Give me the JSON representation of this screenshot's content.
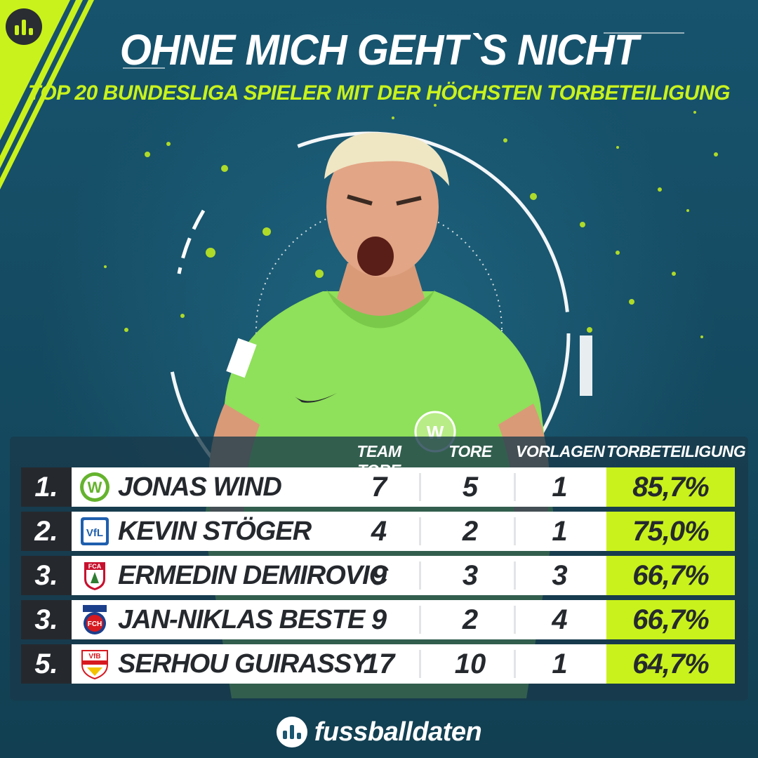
{
  "header": {
    "title": "OHNE MICH GEHT`S NICHT",
    "subtitle": "TOP 20 BUNDESLIGA SPIELER MIT DER HÖCHSTEN TORBETEILIGUNG"
  },
  "table": {
    "columns": [
      "TEAM TORE",
      "TORE",
      "VORLAGEN",
      "TORBETEILIGUNG"
    ],
    "rows": [
      {
        "rank": "1.",
        "name": "JONAS WIND",
        "club_icon": "vfl-wolfsburg-crest-icon",
        "team_goals": "7",
        "goals": "5",
        "assists": "1",
        "share": "85,7%"
      },
      {
        "rank": "2.",
        "name": "KEVIN STÖGER",
        "club_icon": "vfl-bochum-crest-icon",
        "team_goals": "4",
        "goals": "2",
        "assists": "1",
        "share": "75,0%"
      },
      {
        "rank": "3.",
        "name": "ERMEDIN DEMIROVIC",
        "club_icon": "fc-augsburg-crest-icon",
        "team_goals": "9",
        "goals": "3",
        "assists": "3",
        "share": "66,7%"
      },
      {
        "rank": "3.",
        "name": "JAN-NIKLAS BESTE",
        "club_icon": "fc-heidenheim-crest-icon",
        "team_goals": "9",
        "goals": "2",
        "assists": "4",
        "share": "66,7%"
      },
      {
        "rank": "5.",
        "name": "SERHOU GUIRASSY",
        "club_icon": "vfb-stuttgart-crest-icon",
        "team_goals": "17",
        "goals": "10",
        "assists": "1",
        "share": "64,7%"
      }
    ]
  },
  "footer": {
    "brand": "fussballdaten"
  },
  "colors": {
    "background": "#16506a",
    "accent": "#c9f21c",
    "dark": "#25292e",
    "jersey": "#8fe05a"
  },
  "crests": {
    "wolfsburg_letter": "W",
    "bochum_letters": "VfL",
    "augsburg_letters": "FCA",
    "heidenheim_letters": "FCH",
    "stuttgart_letters": "VfB"
  }
}
